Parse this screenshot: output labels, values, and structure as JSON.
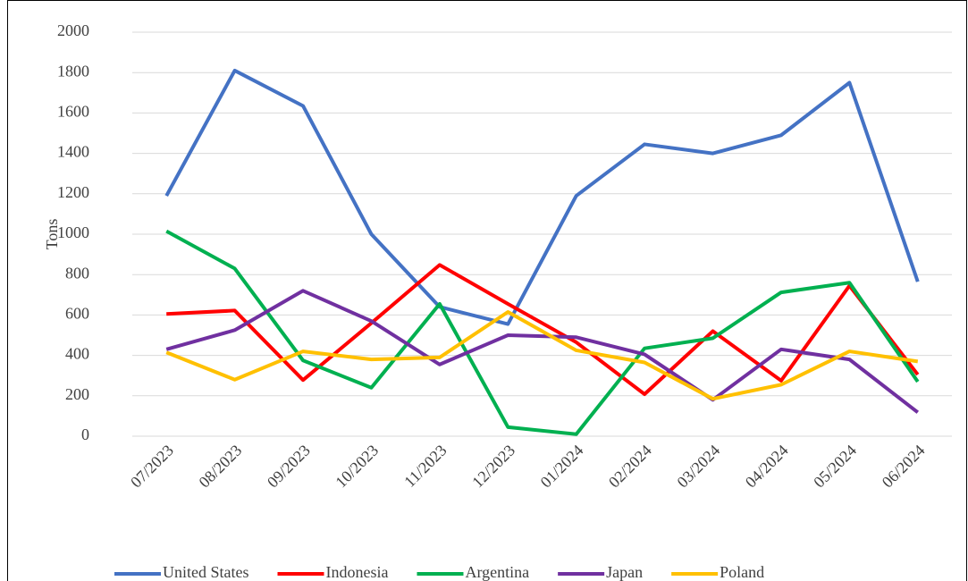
{
  "chart_data": {
    "type": "line",
    "y_label": "Tons",
    "categories": [
      "07/2023",
      "08/2023",
      "09/2023",
      "10/2023",
      "11/2023",
      "12/2023",
      "01/2024",
      "02/2024",
      "03/2024",
      "04/2024",
      "05/2024",
      "06/2024"
    ],
    "series": [
      {
        "name": "United States",
        "color": "#4472c4",
        "values": [
          1190,
          1810,
          1635,
          1000,
          640,
          555,
          1190,
          1445,
          1400,
          1490,
          1750,
          765
        ]
      },
      {
        "name": "Indonesia",
        "color": "#ff0000",
        "values": [
          605,
          622,
          278,
          560,
          848,
          655,
          465,
          208,
          520,
          275,
          745,
          305
        ]
      },
      {
        "name": "Argentina",
        "color": "#00b050",
        "values": [
          1015,
          830,
          375,
          240,
          655,
          45,
          10,
          435,
          485,
          712,
          760,
          270
        ]
      },
      {
        "name": "Japan",
        "color": "#7030a0",
        "values": [
          430,
          525,
          720,
          570,
          355,
          500,
          490,
          405,
          180,
          430,
          380,
          118
        ]
      },
      {
        "name": "Poland",
        "color": "#ffc000",
        "values": [
          415,
          280,
          420,
          380,
          390,
          615,
          425,
          365,
          185,
          255,
          420,
          370
        ]
      }
    ],
    "ylim": [
      0,
      2000
    ],
    "yticks": [
      0,
      200,
      400,
      600,
      800,
      1000,
      1200,
      1400,
      1600,
      1800,
      2000
    ],
    "grid": true,
    "legend": "bottom"
  }
}
